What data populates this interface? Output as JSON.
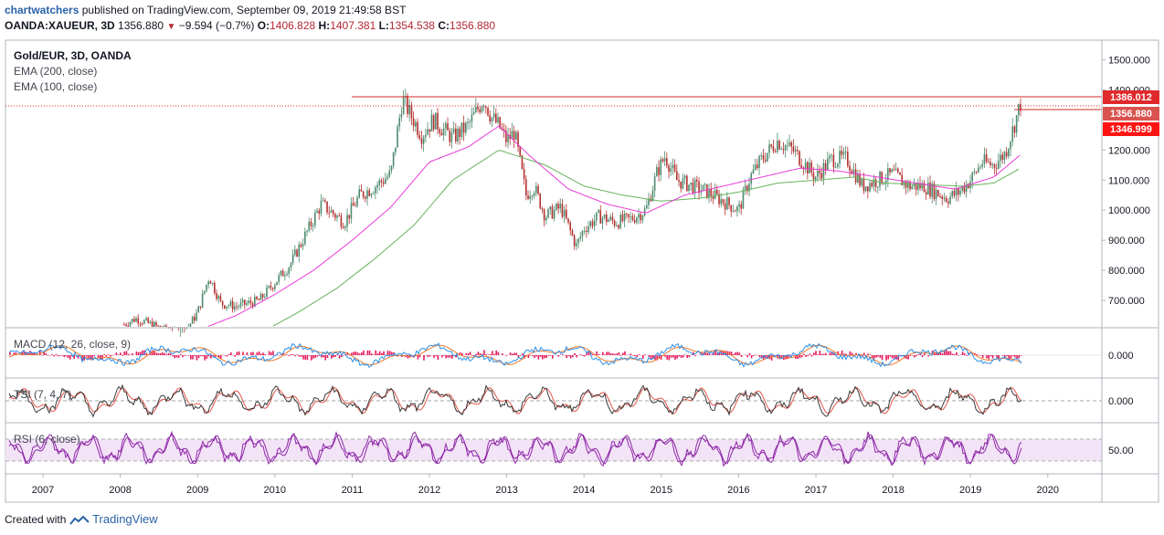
{
  "header": {
    "user": "chartwatchers",
    "published_text": "published on TradingView.com, September 09, 2019 21:49:58 BST",
    "symbol": "OANDA:XAUEUR, 3D",
    "last": "1356.880",
    "change": "−9.594 (−0.7%)",
    "o_label": "O:",
    "o_value": "1406.828",
    "h_label": "H:",
    "h_value": "1407.381",
    "l_label": "L:",
    "l_value": "1354.538",
    "c_label": "C:",
    "c_value": "1356.880"
  },
  "legend": {
    "title": "Gold/EUR, 3D, OANDA",
    "ema200": "EMA (200, close)",
    "ema100": "EMA (100, close)"
  },
  "footer": {
    "created_with": "Created with",
    "brand": "TradingView"
  },
  "colors": {
    "candle_up": "#4e8a6e",
    "candle_down": "#b4302f",
    "ema200": "#65b35a",
    "ema100": "#e93ad9",
    "macd_line": "#2d8fe8",
    "signal_line": "#f07a2a",
    "macd_hist": "#e8195a",
    "tsi_line": "#3a3a3a",
    "tsi_signal": "#e3564a",
    "rsi_line": "#8e2aa8",
    "rsi_band": "#f3e3f7",
    "level_line": "#d42a2a"
  },
  "chart_data": [
    {
      "type": "candlestick",
      "title": "Gold/EUR, 3D, OANDA",
      "x_ticks": [
        "2007",
        "2008",
        "2009",
        "2010",
        "2011",
        "2012",
        "2013",
        "2014",
        "2015",
        "2016",
        "2017",
        "2018",
        "2019",
        "2020"
      ],
      "y_ticks": [
        "1500.000",
        "1400.000",
        "1200.000",
        "1100.000",
        "1000.000",
        "900.000",
        "800.000",
        "700.000"
      ],
      "ylim": [
        590,
        1550
      ],
      "price_labels": [
        {
          "value": "1386.012",
          "role": "resistance level"
        },
        {
          "value": "1356.880",
          "role": "last price"
        },
        {
          "value": "1346.999",
          "role": "level"
        }
      ],
      "close_series_approx": {
        "x_year": [
          2008.05,
          2008.2,
          2008.5,
          2008.8,
          2009.0,
          2009.15,
          2009.3,
          2009.5,
          2009.8,
          2010.0,
          2010.2,
          2010.4,
          2010.6,
          2010.9,
          2011.1,
          2011.3,
          2011.5,
          2011.65,
          2011.75,
          2011.9,
          2012.05,
          2012.3,
          2012.5,
          2012.7,
          2012.8,
          2012.9,
          2013.0,
          2013.1,
          2013.25,
          2013.35,
          2013.5,
          2013.7,
          2013.9,
          2014.0,
          2014.2,
          2014.4,
          2014.6,
          2014.8,
          2014.95,
          2015.05,
          2015.2,
          2015.4,
          2015.6,
          2015.8,
          2016.0,
          2016.15,
          2016.3,
          2016.5,
          2016.7,
          2016.9,
          2017.0,
          2017.2,
          2017.4,
          2017.6,
          2017.8,
          2018.0,
          2018.2,
          2018.4,
          2018.55,
          2018.7,
          2018.85,
          2019.0,
          2019.15,
          2019.3,
          2019.45,
          2019.55,
          2019.65
        ],
        "close": [
          620,
          640,
          610,
          580,
          660,
          780,
          690,
          680,
          700,
          760,
          820,
          920,
          1020,
          960,
          1050,
          1080,
          1120,
          1370,
          1320,
          1250,
          1300,
          1240,
          1280,
          1370,
          1310,
          1280,
          1230,
          1260,
          1050,
          1080,
          980,
          1010,
          880,
          940,
          980,
          960,
          970,
          1000,
          1130,
          1180,
          1100,
          1080,
          1060,
          1030,
          1000,
          1110,
          1170,
          1230,
          1200,
          1140,
          1110,
          1170,
          1170,
          1080,
          1100,
          1120,
          1080,
          1080,
          1060,
          1040,
          1060,
          1100,
          1160,
          1150,
          1190,
          1270,
          1357
        ]
      },
      "ema100_approx": {
        "x_year": [
          2009.0,
          2009.5,
          2010.0,
          2010.5,
          2011.0,
          2011.5,
          2012.0,
          2012.5,
          2012.9,
          2013.3,
          2013.8,
          2014.3,
          2014.8,
          2015.3,
          2015.8,
          2016.3,
          2016.8,
          2017.3,
          2017.8,
          2018.3,
          2018.8,
          2019.3,
          2019.65
        ],
        "value": [
          600,
          650,
          720,
          800,
          900,
          1010,
          1160,
          1210,
          1280,
          1180,
          1070,
          1020,
          990,
          1050,
          1080,
          1110,
          1140,
          1130,
          1110,
          1090,
          1070,
          1110,
          1185
        ]
      },
      "ema200_approx": {
        "x_year": [
          2009.8,
          2010.3,
          2010.8,
          2011.3,
          2011.8,
          2012.3,
          2012.9,
          2013.5,
          2014.0,
          2014.5,
          2015.0,
          2015.5,
          2016.0,
          2016.5,
          2017.0,
          2017.5,
          2017.9,
          2018.4,
          2018.9,
          2019.3,
          2019.65
        ],
        "value": [
          590,
          660,
          740,
          840,
          950,
          1100,
          1200,
          1150,
          1080,
          1050,
          1030,
          1040,
          1060,
          1090,
          1100,
          1110,
          1090,
          1085,
          1080,
          1090,
          1140
        ]
      }
    },
    {
      "type": "line",
      "title": "MACD (12, 26, close, 9)",
      "series": [
        {
          "name": "MACD"
        },
        {
          "name": "Signal"
        },
        {
          "name": "Histogram"
        }
      ],
      "y_ticks": [
        "0.000"
      ]
    },
    {
      "type": "line",
      "title": "TSI (7, 4, 7)",
      "series": [
        {
          "name": "TSI"
        },
        {
          "name": "Signal"
        }
      ],
      "y_ticks": [
        "0.000"
      ]
    },
    {
      "type": "line",
      "title": "RSI (6, close)",
      "series": [
        {
          "name": "RSI"
        }
      ],
      "y_ticks": [
        "50.00"
      ]
    }
  ]
}
